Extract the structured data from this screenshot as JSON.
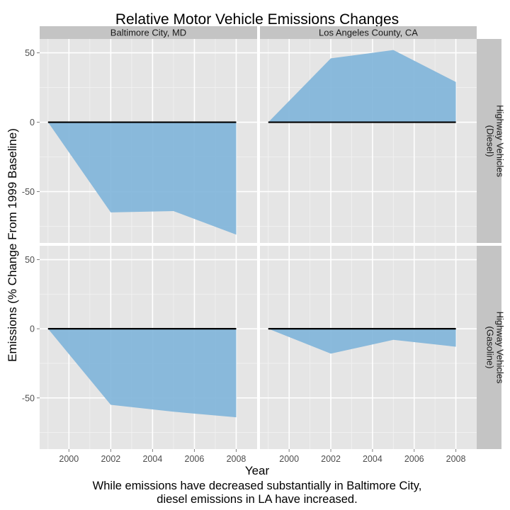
{
  "chart_data": {
    "type": "area",
    "title": "Relative Motor Vehicle Emissions Changes",
    "xlabel": "Year",
    "ylabel": "Emissions (% Change From 1999 Baseline)",
    "caption_lines": [
      "While emissions have decreased substantially in Baltimore City,",
      "diesel emissions in LA have increased."
    ],
    "x_ticks": [
      2000,
      2002,
      2004,
      2006,
      2008
    ],
    "y_ticks": [
      50,
      0,
      -50
    ],
    "xlim": [
      1998.6,
      2009.0
    ],
    "ylim": [
      -87,
      60
    ],
    "columns": [
      "Baltimore City, MD",
      "Los Angeles County, CA"
    ],
    "rows": [
      [
        "Highway Vehicles",
        "(Diesel)"
      ],
      [
        "Highway Vehicles",
        "(Gasoline)"
      ]
    ],
    "fill_color": "#7eb4d9",
    "baseline_color": "#000000",
    "panels": [
      {
        "row": 0,
        "col": 0,
        "x": [
          1999,
          2002,
          2005,
          2008
        ],
        "y": [
          0,
          -65,
          -64,
          -81
        ]
      },
      {
        "row": 0,
        "col": 1,
        "x": [
          1999,
          2002,
          2005,
          2008
        ],
        "y": [
          0,
          46,
          52,
          29
        ]
      },
      {
        "row": 1,
        "col": 0,
        "x": [
          1999,
          2002,
          2005,
          2008
        ],
        "y": [
          0,
          -55,
          -60,
          -64
        ]
      },
      {
        "row": 1,
        "col": 1,
        "x": [
          1999,
          2002,
          2005,
          2008
        ],
        "y": [
          0,
          -18,
          -8,
          -13
        ]
      }
    ]
  }
}
